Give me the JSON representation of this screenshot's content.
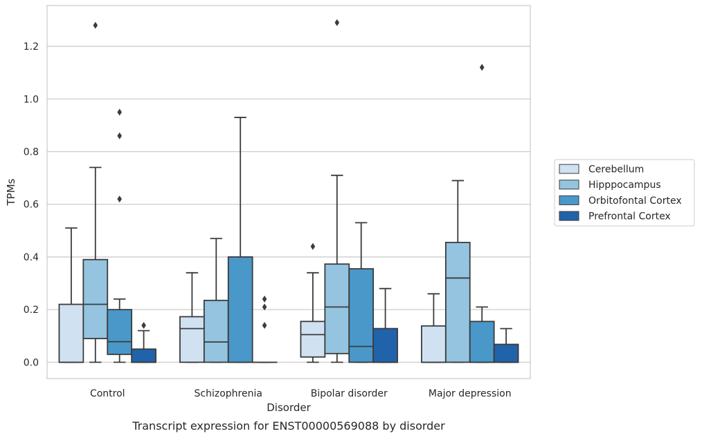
{
  "caption": "Transcript expression for ENST00000569088 by disorder",
  "chart_data": {
    "type": "box",
    "xlabel": "Disorder",
    "ylabel": "TPMs",
    "ylim": [
      -0.062,
      1.355
    ],
    "yticks": [
      "0.0",
      "0.2",
      "0.4",
      "0.6",
      "0.8",
      "1.0",
      "1.2"
    ],
    "ytick_values": [
      0,
      0.2,
      0.4,
      0.6,
      0.8,
      1.0,
      1.2
    ],
    "grid": "horizontal",
    "legend_position": "right",
    "categories": [
      "Control",
      "Schizophrenia",
      "Bipolar disorder",
      "Major depression"
    ],
    "series": [
      {
        "name": "Cerebellum",
        "color": "#d0e1f2",
        "boxes": [
          {
            "whisker_low": 0.0,
            "q1": 0.0,
            "median": 0.0,
            "q3": 0.22,
            "whisker_high": 0.51,
            "outliers": []
          },
          {
            "whisker_low": 0.0,
            "q1": 0.0,
            "median": 0.128,
            "q3": 0.173,
            "whisker_high": 0.34,
            "outliers": []
          },
          {
            "whisker_low": 0.0,
            "q1": 0.02,
            "median": 0.105,
            "q3": 0.155,
            "whisker_high": 0.34,
            "outliers": [
              0.44
            ]
          },
          {
            "whisker_low": 0.0,
            "q1": 0.0,
            "median": 0.0,
            "q3": 0.138,
            "whisker_high": 0.26,
            "outliers": []
          }
        ]
      },
      {
        "name": "Hipppocampus",
        "color": "#94c4df",
        "boxes": [
          {
            "whisker_low": 0.0,
            "q1": 0.09,
            "median": 0.22,
            "q3": 0.39,
            "whisker_high": 0.74,
            "outliers": [
              1.28
            ]
          },
          {
            "whisker_low": 0.0,
            "q1": 0.0,
            "median": 0.077,
            "q3": 0.235,
            "whisker_high": 0.47,
            "outliers": []
          },
          {
            "whisker_low": 0.0,
            "q1": 0.033,
            "median": 0.21,
            "q3": 0.373,
            "whisker_high": 0.71,
            "outliers": [
              1.29
            ]
          },
          {
            "whisker_low": 0.0,
            "q1": 0.0,
            "median": 0.32,
            "q3": 0.455,
            "whisker_high": 0.69,
            "outliers": []
          }
        ]
      },
      {
        "name": "Orbitofontal Cortex",
        "color": "#4a98c9",
        "boxes": [
          {
            "whisker_low": 0.0,
            "q1": 0.03,
            "median": 0.078,
            "q3": 0.2,
            "whisker_high": 0.24,
            "outliers": [
              0.62,
              0.86,
              0.95
            ]
          },
          {
            "whisker_low": 0.0,
            "q1": 0.0,
            "median": 0.0,
            "q3": 0.4,
            "whisker_high": 0.93,
            "outliers": []
          },
          {
            "whisker_low": 0.0,
            "q1": 0.0,
            "median": 0.06,
            "q3": 0.355,
            "whisker_high": 0.53,
            "outliers": []
          },
          {
            "whisker_low": 0.0,
            "q1": 0.0,
            "median": 0.0,
            "q3": 0.155,
            "whisker_high": 0.21,
            "outliers": [
              1.12
            ]
          }
        ]
      },
      {
        "name": "Prefrontal Cortex",
        "color": "#2163aa",
        "boxes": [
          {
            "whisker_low": 0.0,
            "q1": 0.0,
            "median": 0.0,
            "q3": 0.05,
            "whisker_high": 0.12,
            "outliers": [
              0.14
            ]
          },
          {
            "whisker_low": 0.0,
            "q1": 0.0,
            "median": 0.0,
            "q3": 0.0,
            "whisker_high": 0.0,
            "outliers": [
              0.14,
              0.21,
              0.24
            ]
          },
          {
            "whisker_low": 0.0,
            "q1": 0.0,
            "median": 0.0,
            "q3": 0.128,
            "whisker_high": 0.28,
            "outliers": []
          },
          {
            "whisker_low": 0.0,
            "q1": 0.0,
            "median": 0.0,
            "q3": 0.068,
            "whisker_high": 0.128,
            "outliers": []
          }
        ]
      }
    ]
  }
}
